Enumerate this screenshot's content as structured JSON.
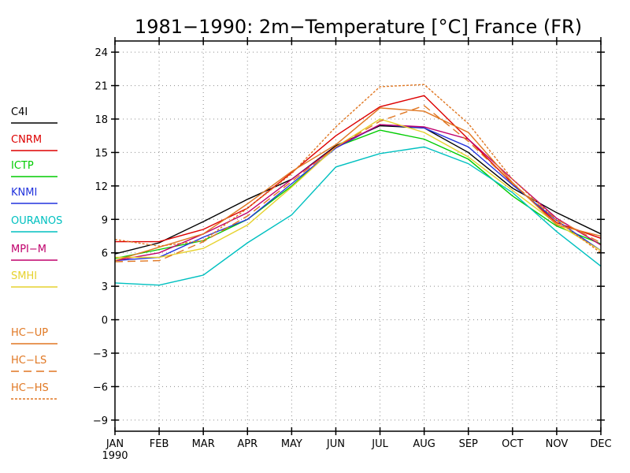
{
  "chart_data": {
    "type": "line",
    "title": "1981−1990: 2m−Temperature [°C] France (FR)",
    "xlabel": "",
    "ylabel": "",
    "categories": [
      "JAN",
      "FEB",
      "MAR",
      "APR",
      "MAY",
      "JUN",
      "JUL",
      "AUG",
      "SEP",
      "OCT",
      "NOV",
      "DEC"
    ],
    "x_year_label": "1990",
    "ylim": [
      -10,
      25
    ],
    "yticks": [
      24,
      21,
      18,
      15,
      12,
      9,
      6,
      3,
      0,
      -3,
      -6,
      -9
    ],
    "ytick_labels": [
      "24",
      "21",
      "18",
      "15",
      "12",
      "9",
      "6",
      "3",
      "0",
      "−3",
      "−6",
      "−9"
    ],
    "grid": true,
    "legend_position": "left",
    "series": [
      {
        "name": "C4I",
        "color": "#000000",
        "dash": "solid",
        "values": [
          5.9,
          6.9,
          8.8,
          10.8,
          12.6,
          15.6,
          17.4,
          17.2,
          15.0,
          11.8,
          9.6,
          7.7
        ]
      },
      {
        "name": "CNRM",
        "color": "#dd0000",
        "dash": "solid",
        "values": [
          7.0,
          7.0,
          8.1,
          10.0,
          13.2,
          16.5,
          19.1,
          20.1,
          16.2,
          12.2,
          8.7,
          7.3
        ]
      },
      {
        "name": "ICTP",
        "color": "#00cc00",
        "dash": "solid",
        "values": [
          5.5,
          6.3,
          7.1,
          9.0,
          12.0,
          15.5,
          17.0,
          16.2,
          14.4,
          11.1,
          8.4,
          6.8
        ]
      },
      {
        "name": "KNMI",
        "color": "#2233dd",
        "dash": "solid",
        "values": [
          5.3,
          5.6,
          7.4,
          9.0,
          12.2,
          15.4,
          17.5,
          17.2,
          15.5,
          12.1,
          8.9,
          6.2
        ]
      },
      {
        "name": "OURANOS",
        "color": "#00c0c0",
        "dash": "solid",
        "values": [
          3.3,
          3.1,
          4.0,
          6.9,
          9.4,
          13.7,
          14.9,
          15.5,
          14.0,
          11.4,
          7.9,
          4.8
        ]
      },
      {
        "name": "MPI−M",
        "color": "#c0006c",
        "dash": "solid",
        "values": [
          5.3,
          6.0,
          7.7,
          9.6,
          12.6,
          15.5,
          17.5,
          17.3,
          16.2,
          12.6,
          9.1,
          6.7
        ]
      },
      {
        "name": "SMHI",
        "color": "#e6d22e",
        "dash": "solid",
        "values": [
          5.6,
          5.6,
          6.4,
          8.5,
          11.9,
          15.5,
          18.0,
          16.8,
          14.6,
          11.6,
          8.6,
          6.2
        ]
      },
      {
        "name": "HC−UP",
        "color": "#e07722",
        "dash": "solid",
        "values": [
          5.3,
          6.5,
          7.7,
          10.4,
          13.3,
          15.7,
          19.0,
          18.7,
          16.8,
          12.3,
          8.5,
          7.5
        ]
      },
      {
        "name": "HC−LS",
        "color": "#e07722",
        "dash": "long",
        "values": [
          5.2,
          5.3,
          7.0,
          9.3,
          12.4,
          15.5,
          17.8,
          19.2,
          16.0,
          12.2,
          9.0,
          6.9
        ]
      },
      {
        "name": "HC−HS",
        "color": "#e07722",
        "dash": "short",
        "values": [
          7.2,
          6.6,
          7.1,
          10.0,
          13.1,
          17.3,
          20.9,
          21.1,
          17.6,
          12.6,
          8.9,
          6.0
        ]
      }
    ]
  }
}
